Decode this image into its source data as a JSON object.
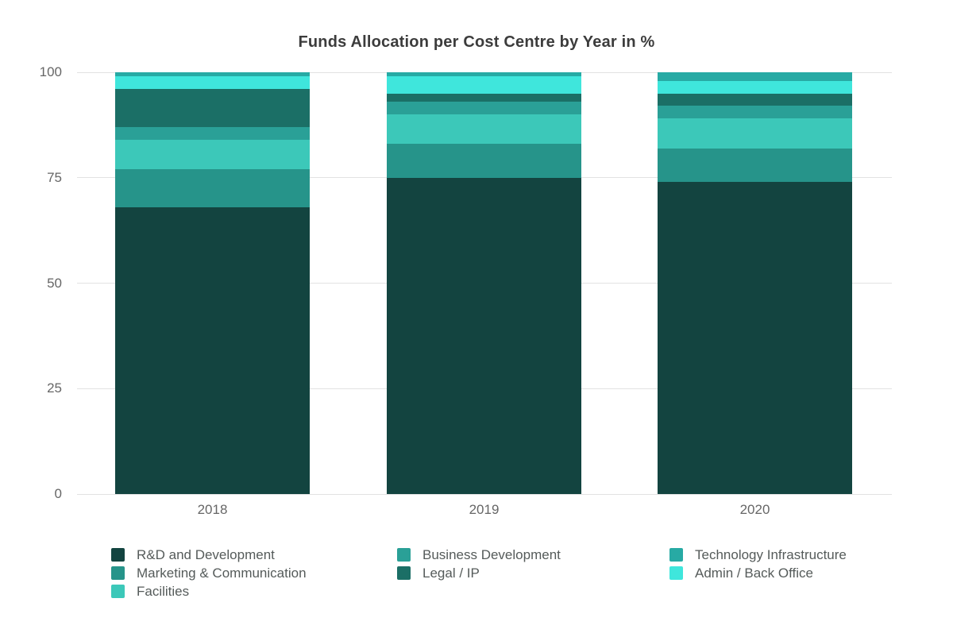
{
  "page": {
    "background": "#ffffff"
  },
  "chart_data": {
    "type": "bar",
    "stacked": true,
    "title": "Funds Allocation per Cost Centre by Year in %",
    "categories": [
      "2018",
      "2019",
      "2020"
    ],
    "series": [
      {
        "name": "R&D and Development",
        "color": "#134440",
        "values": [
          68,
          75,
          74
        ]
      },
      {
        "name": "Marketing & Communication",
        "color": "#26948a",
        "values": [
          9,
          8,
          8
        ]
      },
      {
        "name": "Facilities",
        "color": "#3cc8b9",
        "values": [
          7,
          7,
          7
        ]
      },
      {
        "name": "Business Development",
        "color": "#2aa097",
        "values": [
          3,
          3,
          3
        ]
      },
      {
        "name": "Legal / IP",
        "color": "#1b6f66",
        "values": [
          9,
          2,
          3
        ]
      },
      {
        "name": "Admin / Back Office",
        "color": "#3fe6dc",
        "values": [
          3,
          4,
          3
        ]
      },
      {
        "name": "Technology Infrastructure",
        "color": "#27aaa4",
        "values": [
          1,
          1,
          2
        ]
      }
    ],
    "stack_order_note": "series listed bottom-to-top",
    "xlabel": "",
    "ylabel": "",
    "ylim": [
      0,
      100
    ],
    "yticks": [
      0,
      25,
      50,
      75,
      100
    ],
    "grid": true,
    "legend_position": "bottom",
    "legend_columns": [
      [
        "R&D and Development",
        "Marketing & Communication",
        "Facilities"
      ],
      [
        "Business Development",
        "Legal / IP"
      ],
      [
        "Technology Infrastructure",
        "Admin / Back Office"
      ]
    ],
    "gridline_color": "#e2e2e2",
    "axis_text_color": "#666666",
    "title_color": "#3c3c3c"
  }
}
